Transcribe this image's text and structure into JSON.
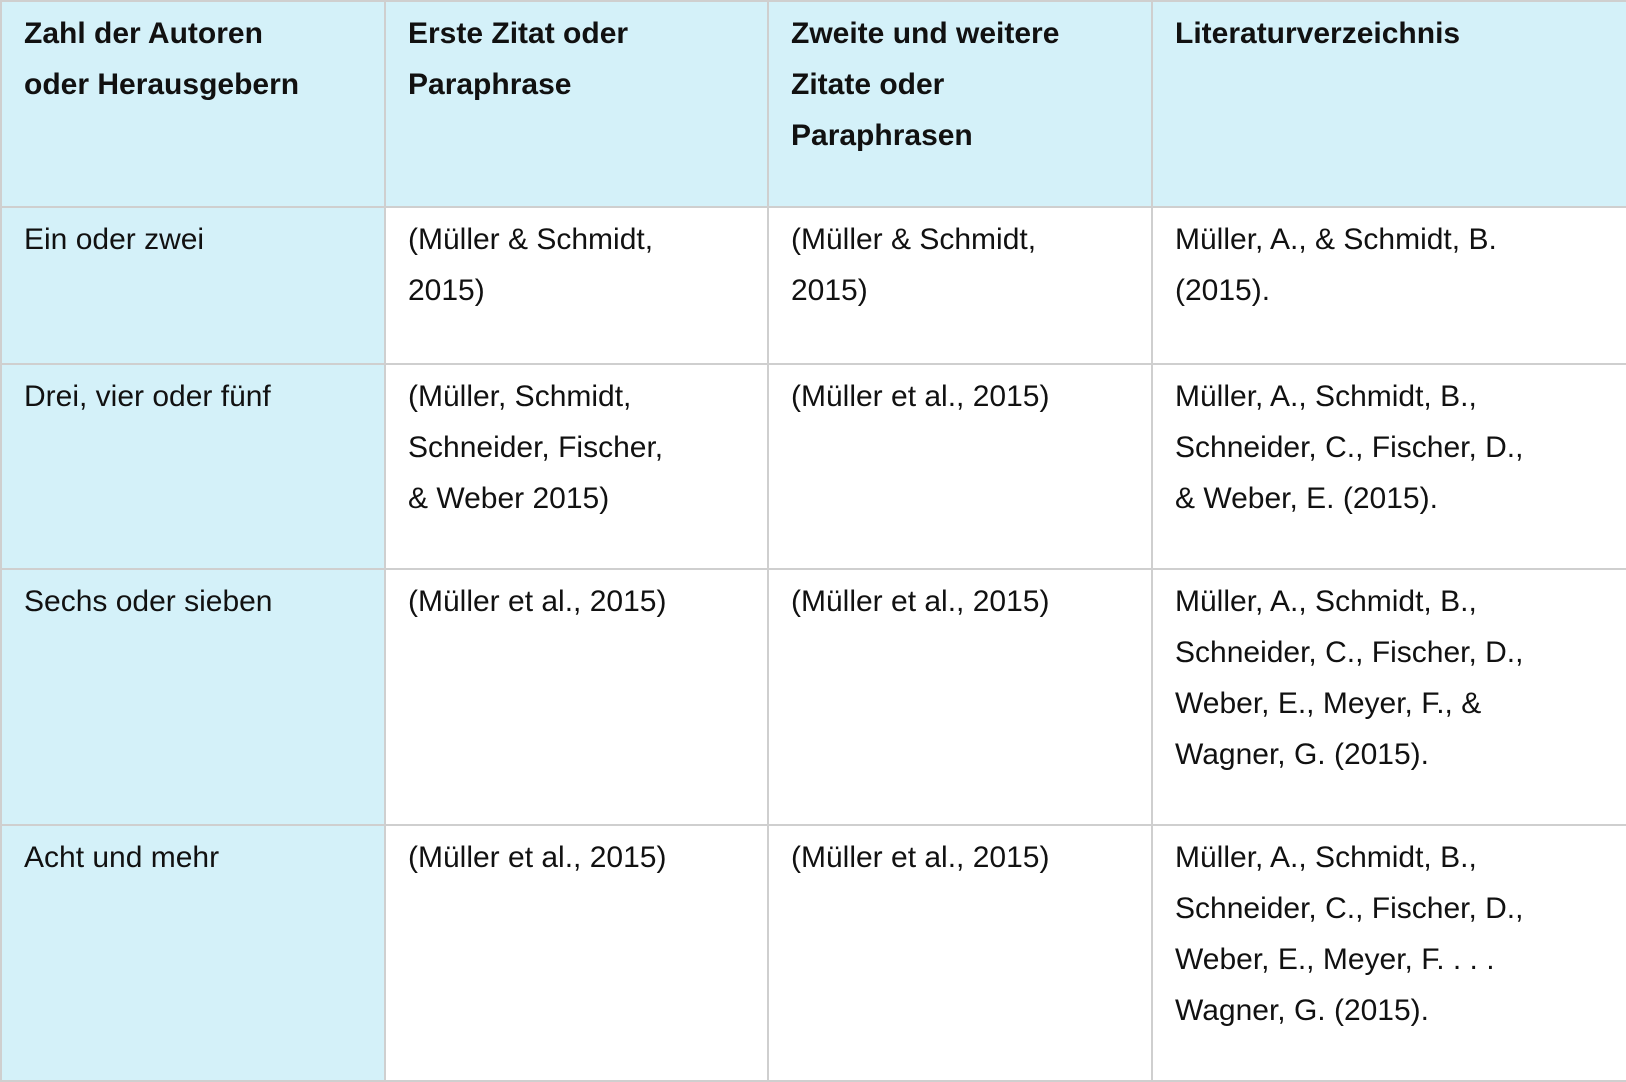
{
  "table": {
    "header": [
      [
        "Zahl der Autoren",
        "oder Herausgebern"
      ],
      [
        "Erste Zitat oder",
        "Paraphrase"
      ],
      [
        "Zweite und weitere",
        "Zitate oder",
        "Paraphrasen"
      ],
      [
        "Literaturverzeichnis"
      ]
    ],
    "rows": [
      [
        [
          "Ein oder zwei"
        ],
        [
          "(Müller & Schmidt,",
          "2015)"
        ],
        [
          "(Müller & Schmidt,",
          "2015)"
        ],
        [
          "Müller, A., & Schmidt, B.",
          "(2015)."
        ]
      ],
      [
        [
          "Drei, vier oder fünf"
        ],
        [
          "(Müller, Schmidt,",
          "Schneider, Fischer,",
          "& Weber 2015)"
        ],
        [
          "(Müller et al., 2015)"
        ],
        [
          "Müller, A., Schmidt, B.,",
          "Schneider, C., Fischer, D.,",
          "& Weber, E. (2015)."
        ]
      ],
      [
        [
          "Sechs oder sieben"
        ],
        [
          "(Müller et al., 2015)"
        ],
        [
          "(Müller et al., 2015)"
        ],
        [
          "Müller, A., Schmidt, B.,",
          "Schneider, C., Fischer, D.,",
          "Weber, E., Meyer, F., &",
          "Wagner, G. (2015)."
        ]
      ],
      [
        [
          "Acht und mehr"
        ],
        [
          "(Müller et al., 2015)"
        ],
        [
          "(Müller et al., 2015)"
        ],
        [
          "Müller, A., Schmidt, B.,",
          "Schneider, C., Fischer, D.,",
          "Weber, E., Meyer, F. . . .",
          "Wagner, G. (2015)."
        ]
      ]
    ]
  }
}
